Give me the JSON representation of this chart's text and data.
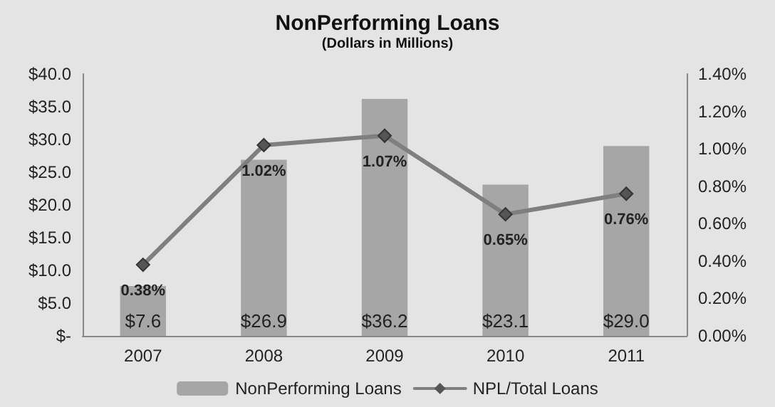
{
  "chart_data": {
    "type": "bar",
    "title": "NonPerforming Loans",
    "subtitle": "(Dollars in Millions)",
    "categories": [
      "2007",
      "2008",
      "2009",
      "2010",
      "2011"
    ],
    "series": [
      {
        "name": "NonPerforming Loans",
        "color": "#a6a6a6",
        "values": [
          7.6,
          26.9,
          36.2,
          23.1,
          29.0
        ],
        "value_labels": [
          "$7.6",
          "$26.9",
          "$36.2",
          "$23.1",
          "$29.0"
        ]
      },
      {
        "name": "NPL/Total Loans",
        "type": "line",
        "axis": "y2",
        "color": "#7f7f7f",
        "marker": "diamond",
        "values": [
          0.38,
          1.02,
          1.07,
          0.65,
          0.76
        ],
        "value_labels": [
          "0.38%",
          "1.02%",
          "1.07%",
          "0.65%",
          "0.76%"
        ]
      }
    ],
    "ylim": [
      0,
      40
    ],
    "yticks": [
      {
        "value": 0,
        "label": "$-"
      },
      {
        "value": 5,
        "label": "$5.0"
      },
      {
        "value": 10,
        "label": "$10.0"
      },
      {
        "value": 15,
        "label": "$15.0"
      },
      {
        "value": 20,
        "label": "$20.0"
      },
      {
        "value": 25,
        "label": "$25.0"
      },
      {
        "value": 30,
        "label": "$30.0"
      },
      {
        "value": 35,
        "label": "$35.0"
      },
      {
        "value": 40,
        "label": "$40.0"
      }
    ],
    "y2lim": [
      0,
      1.4
    ],
    "y2ticks": [
      {
        "value": 0,
        "label": "0.00%"
      },
      {
        "value": 0.2,
        "label": "0.20%"
      },
      {
        "value": 0.4,
        "label": "0.40%"
      },
      {
        "value": 0.6,
        "label": "0.60%"
      },
      {
        "value": 0.8,
        "label": "0.80%"
      },
      {
        "value": 1.0,
        "label": "1.00%"
      },
      {
        "value": 1.2,
        "label": "1.20%"
      },
      {
        "value": 1.4,
        "label": "1.40%"
      }
    ],
    "grid": false,
    "legend": "bottom"
  }
}
